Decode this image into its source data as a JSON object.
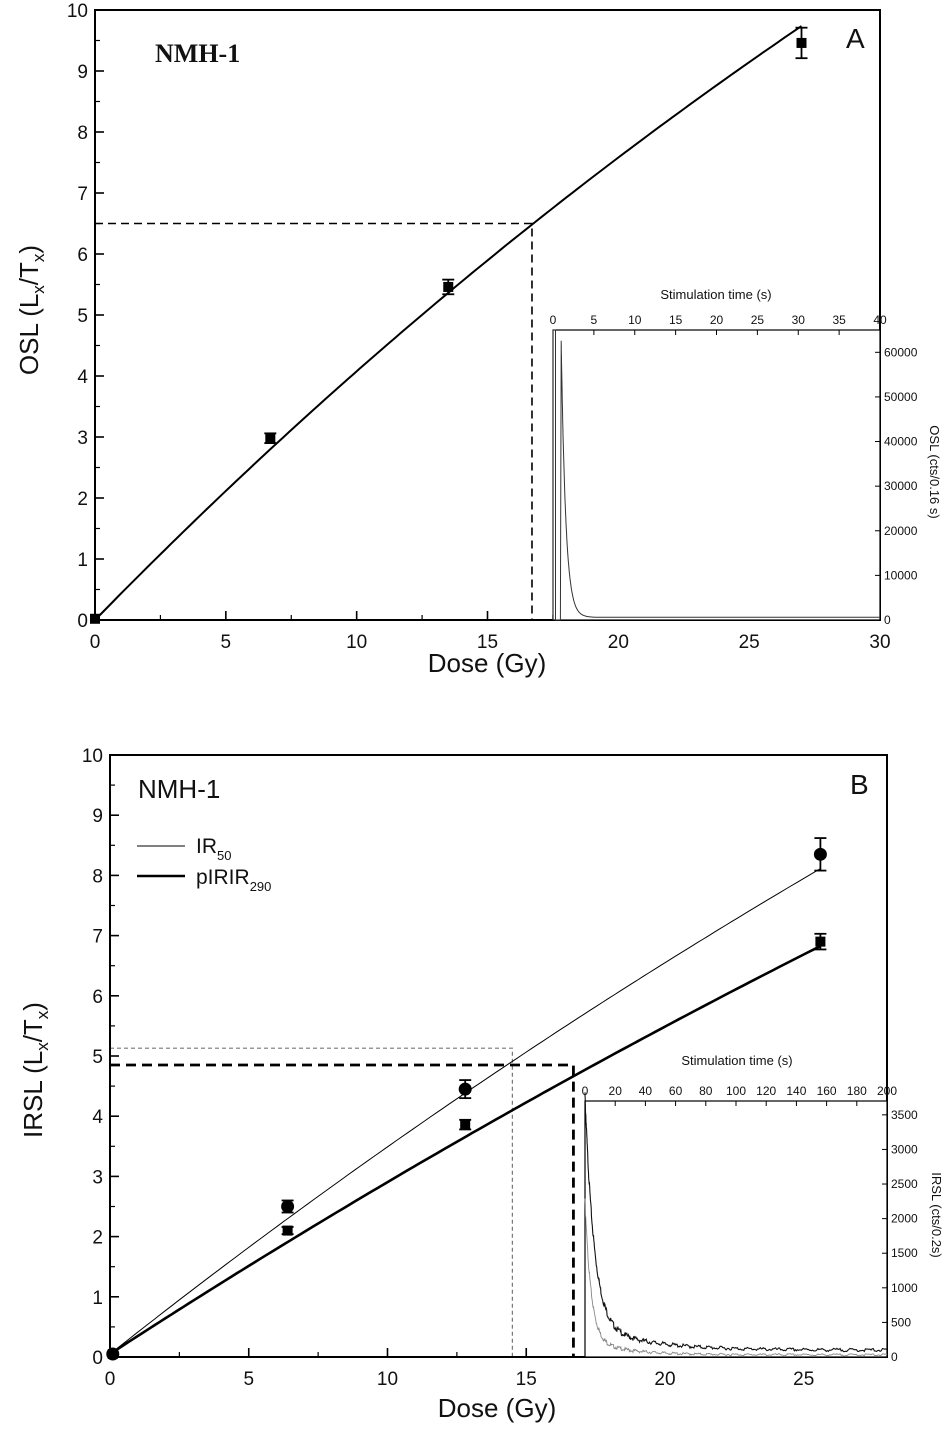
{
  "chart_data": [
    {
      "type": "line",
      "panel": "A",
      "annotation": "NMH-1",
      "xlabel": "Dose (Gy)",
      "ylabel": "OSL (L_x/T_x)",
      "xlim": [
        0,
        30
      ],
      "ylim": [
        0,
        10
      ],
      "xticks": [
        "0",
        "5",
        "10",
        "15",
        "20",
        "25",
        "30"
      ],
      "yticks": [
        "0",
        "1",
        "2",
        "3",
        "4",
        "5",
        "6",
        "7",
        "8",
        "9",
        "10"
      ],
      "grid": false,
      "series": [
        {
          "style": "thick",
          "marker": "square",
          "points": [
            {
              "x": 0,
              "y": 0.02,
              "err": 0.02
            },
            {
              "x": 6.7,
              "y": 2.98,
              "err": 0.08
            },
            {
              "x": 13.5,
              "y": 5.46,
              "err": 0.12
            },
            {
              "x": 27.0,
              "y": 9.46,
              "err": 0.25
            }
          ],
          "fit": {
            "type": "saturating-exponential",
            "y0": 0,
            "a": 29.0,
            "d0": 66.0,
            "x_range": [
              0,
              27
            ]
          }
        }
      ],
      "interpolation": {
        "y": 6.5,
        "x": 16.7
      },
      "inset": {
        "xlabel": "Stimulation time (s)",
        "ylabel": "OSL (cts/0.16 s)",
        "xlim": [
          0,
          40
        ],
        "ylim": [
          0,
          65000
        ],
        "xticks": [
          "0",
          "5",
          "10",
          "15",
          "20",
          "25",
          "30",
          "35",
          "40"
        ],
        "yticks": [
          "0",
          "10000",
          "20000",
          "30000",
          "40000",
          "50000",
          "60000"
        ],
        "decay": {
          "peak": 62000,
          "tau": 0.55,
          "background": 600,
          "onset": 1.0
        }
      }
    },
    {
      "type": "line",
      "panel": "B",
      "annotation": "NMH-1",
      "xlabel": "Dose (Gy)",
      "ylabel": "IRSL (L_x/T_x)",
      "xlim": [
        0,
        28
      ],
      "ylim": [
        0,
        10
      ],
      "xticks": [
        "0",
        "5",
        "10",
        "15",
        "20",
        "25"
      ],
      "yticks": [
        "0",
        "1",
        "2",
        "3",
        "4",
        "5",
        "6",
        "7",
        "8",
        "9",
        "10"
      ],
      "grid": false,
      "legend": {
        "position": "top-left",
        "entries": [
          {
            "base": "IR",
            "sub": "50",
            "style": "thin"
          },
          {
            "base": "pIRIR",
            "sub": "290",
            "style": "thick"
          }
        ]
      },
      "series": [
        {
          "style": "thin",
          "marker": "circle",
          "points": [
            {
              "x": 0.1,
              "y": 0.05,
              "err": 0.03
            },
            {
              "x": 6.4,
              "y": 2.5,
              "err": 0.1
            },
            {
              "x": 12.8,
              "y": 4.45,
              "err": 0.15
            },
            {
              "x": 25.6,
              "y": 8.35,
              "err": 0.27
            }
          ],
          "fit": {
            "type": "saturating-exponential",
            "y0": 0.05,
            "a": 31.0,
            "d0": 85.0,
            "x_range": [
              0.1,
              25.6
            ]
          }
        },
        {
          "style": "thick",
          "marker": "square",
          "points": [
            {
              "x": 0.1,
              "y": 0.05,
              "err": 0.02
            },
            {
              "x": 6.4,
              "y": 2.1,
              "err": 0.06
            },
            {
              "x": 12.8,
              "y": 3.86,
              "err": 0.08
            },
            {
              "x": 25.6,
              "y": 6.9,
              "err": 0.13
            }
          ],
          "fit": {
            "type": "saturating-exponential",
            "y0": 0.05,
            "a": 30.0,
            "d0": 100.0,
            "x_range": [
              0.1,
              25.6
            ]
          }
        }
      ],
      "interpolations": [
        {
          "style": "thin",
          "y": 5.13,
          "x": 14.5
        },
        {
          "style": "thick",
          "y": 4.85,
          "x": 16.7
        }
      ],
      "inset": {
        "xlabel": "Stimulation time (s)",
        "ylabel": "IRSL (cts/0.2s)",
        "xlim": [
          0,
          200
        ],
        "ylim": [
          0,
          3700
        ],
        "xticks": [
          "0",
          "20",
          "40",
          "60",
          "80",
          "100",
          "120",
          "140",
          "160",
          "180",
          "200"
        ],
        "yticks": [
          "0",
          "500",
          "1000",
          "1500",
          "2000",
          "2500",
          "3000",
          "3500"
        ],
        "decays": [
          {
            "style": "dark",
            "peak": 3300,
            "tau": 6.0,
            "background": 110
          },
          {
            "style": "grey",
            "peak": 2000,
            "tau": 4.0,
            "background": 40
          }
        ]
      }
    }
  ]
}
